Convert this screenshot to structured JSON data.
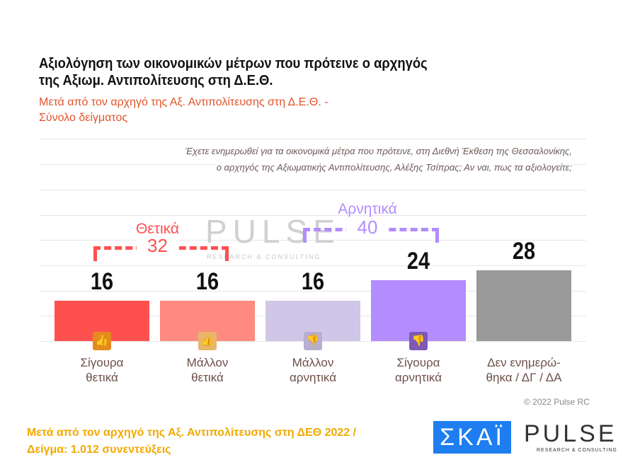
{
  "header": {
    "title_line1": "Αξιολόγηση των οικονομικών μέτρων που πρότεινε ο αρχηγός",
    "title_line2": "της Αξιωμ. Αντιπολίτευσης στη Δ.Ε.Θ.",
    "subtitle_line1": "Μετά από τον αρχηγό της Αξ. Αντιπολίτευσης στη Δ.Ε.Θ. -",
    "subtitle_line2": "Σύνολο δείγματος",
    "question_line1": "Έχετε ενημερωθεί για τα οικονομικά μέτρα που πρότεινε, στη Διεθνή Έκθεση της Θεσσαλονίκης,",
    "question_line2": "ο αρχηγός της Αξιωματικής Αντιπολίτευσης, Αλέξης Τσίπρας; Αν ναι, πως τα αξιολογείτε;"
  },
  "chart_data": {
    "type": "bar",
    "categories": [
      "Σίγουρα θετικά",
      "Μάλλον θετικά",
      "Μάλλον αρνητικά",
      "Σίγουρα αρνητικά",
      "Δεν ενημερώ- θηκα / ΔΓ / ΔΑ"
    ],
    "category_lines": [
      [
        "Σίγουρα",
        "θετικά"
      ],
      [
        "Μάλλον",
        "θετικά"
      ],
      [
        "Μάλλον",
        "αρνητικά"
      ],
      [
        "Σίγουρα",
        "αρνητικά"
      ],
      [
        "Δεν ενημερώ-",
        "θηκα / ΔΓ / ΔΑ"
      ]
    ],
    "values": [
      16,
      16,
      16,
      24,
      28
    ],
    "value_labels": [
      "16",
      "16",
      "16",
      "24",
      "28"
    ],
    "colors": [
      "#ff5050",
      "#ff8a80",
      "#d0c6e8",
      "#b38cff",
      "#9a9a9a"
    ],
    "icons": [
      {
        "name": "double-thumbs-up-icon",
        "color": "#e58a1f"
      },
      {
        "name": "thumbs-up-icon",
        "color": "#e8b56a"
      },
      {
        "name": "thumbs-down-icon",
        "color": "#b7aed0"
      },
      {
        "name": "double-thumbs-down-icon",
        "color": "#7d5ab5"
      },
      null
    ],
    "ylim": [
      0,
      80
    ],
    "grid": true,
    "groups": [
      {
        "label": "Θετικά",
        "value": "32",
        "color": "#ff5050"
      },
      {
        "label": "Αρνητικά",
        "value": "40",
        "color": "#b38cff"
      }
    ]
  },
  "watermark": {
    "brand": "PULSE",
    "tagline": "RESEARCH & CONSULTING"
  },
  "copyright": "© 2022 Pulse RC",
  "footer": {
    "line1": "Μετά από τον αρχηγό της Αξ. Αντιπολίτευσης στη ΔΕΘ  2022  /",
    "line2": "Δείγμα:  1.012 συνεντεύξεις"
  },
  "logos": {
    "skai": "ΣΚΑΪ",
    "pulse": "PULSE",
    "pulse_sub": "RESEARCH & CONSULTING"
  }
}
